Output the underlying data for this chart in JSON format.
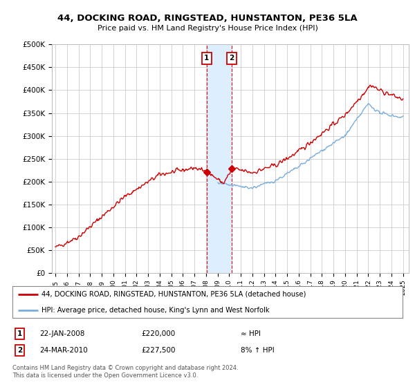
{
  "title": "44, DOCKING ROAD, RINGSTEAD, HUNSTANTON, PE36 5LA",
  "subtitle": "Price paid vs. HM Land Registry's House Price Index (HPI)",
  "ylabel_ticks": [
    "£0",
    "£50K",
    "£100K",
    "£150K",
    "£200K",
    "£250K",
    "£300K",
    "£350K",
    "£400K",
    "£450K",
    "£500K"
  ],
  "ytick_values": [
    0,
    50000,
    100000,
    150000,
    200000,
    250000,
    300000,
    350000,
    400000,
    450000,
    500000
  ],
  "xlim_start": 1994.7,
  "xlim_end": 2025.5,
  "ylim": [
    0,
    500000
  ],
  "sale1_x": 2008.055,
  "sale1_y": 220000,
  "sale2_x": 2010.23,
  "sale2_y": 227500,
  "red_color": "#cc0000",
  "blue_color": "#7aaddb",
  "shading_color": "#ddeeff",
  "legend_label_red": "44, DOCKING ROAD, RINGSTEAD, HUNSTANTON, PE36 5LA (detached house)",
  "legend_label_blue": "HPI: Average price, detached house, King's Lynn and West Norfolk",
  "table_row1": [
    "1",
    "22-JAN-2008",
    "£220,000",
    "≈ HPI"
  ],
  "table_row2": [
    "2",
    "24-MAR-2010",
    "£227,500",
    "8% ↑ HPI"
  ],
  "footnote": "Contains HM Land Registry data © Crown copyright and database right 2024.\nThis data is licensed under the Open Government Licence v3.0.",
  "background_color": "#ffffff",
  "plot_bg_color": "#ffffff",
  "grid_color": "#cccccc"
}
